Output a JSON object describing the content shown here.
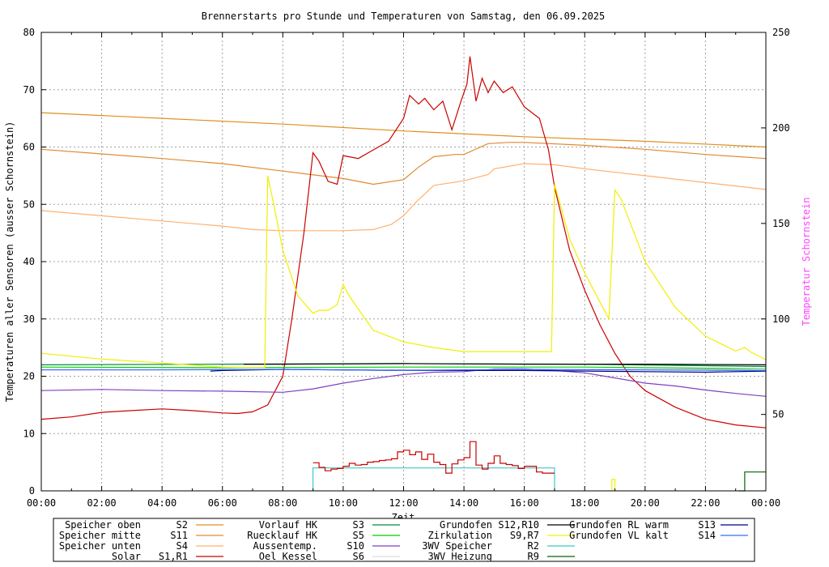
{
  "chart_data": {
    "type": "line",
    "title": "Brennerstarts pro Stunde und Temperaturen von Samstag, den 06.09.2025",
    "xlabel": "Zeit",
    "ylabel": "Temperaturen aller Sensoren (ausser Schornstein)",
    "y2label": "Temperatur Schornstein",
    "xlim": [
      0,
      24
    ],
    "ylim": [
      0,
      80
    ],
    "y2lim": [
      10,
      250
    ],
    "grid": true,
    "x_ticks": [
      "00:00",
      "02:00",
      "04:00",
      "06:00",
      "08:00",
      "10:00",
      "12:00",
      "14:00",
      "16:00",
      "18:00",
      "20:00",
      "22:00",
      "00:00"
    ],
    "y_ticks": [
      "0",
      "10",
      "20",
      "30",
      "40",
      "50",
      "60",
      "70",
      "80"
    ],
    "y2_ticks": [
      "50",
      "100",
      "150",
      "200",
      "250"
    ],
    "y2_tick_values": [
      50,
      100,
      150,
      200,
      250
    ],
    "series": [
      {
        "name": "Speicher oben",
        "sensor": "S2",
        "color": "#e09020",
        "axis": "y",
        "x": [
          0,
          4,
          8,
          12,
          16,
          20,
          24
        ],
        "y": [
          66,
          65,
          64,
          62.8,
          61.8,
          61,
          60
        ]
      },
      {
        "name": "Speicher mitte",
        "sensor": "S11",
        "color": "#e08a30",
        "axis": "y",
        "x": [
          0,
          2,
          4,
          6,
          8,
          10,
          11,
          12,
          12.5,
          13,
          13.7,
          14,
          14.8,
          15.5,
          16,
          18,
          20,
          22,
          24
        ],
        "y": [
          59.6,
          58.8,
          58,
          57.1,
          55.8,
          54.5,
          53.5,
          54.3,
          56.5,
          58.3,
          58.7,
          58.7,
          60.6,
          60.8,
          60.8,
          60.3,
          59.6,
          58.7,
          58
        ]
      },
      {
        "name": "Speicher unten",
        "sensor": "S4",
        "color": "#ffb070",
        "axis": "y",
        "x": [
          0,
          2,
          4,
          6,
          7,
          8,
          10,
          11,
          11.6,
          12,
          12.4,
          13,
          14,
          14.8,
          15,
          16,
          17,
          18,
          20,
          22,
          24
        ],
        "y": [
          48.9,
          48,
          47.1,
          46.2,
          45.6,
          45.4,
          45.4,
          45.6,
          46.5,
          48,
          50.3,
          53.3,
          54.1,
          55.2,
          56.2,
          57.1,
          56.9,
          56.2,
          55,
          53.8,
          52.6
        ]
      },
      {
        "name": "Solar",
        "sensor": "S1,R1",
        "color": "#cc0000",
        "axis": "y",
        "x": [
          0,
          1,
          2,
          3,
          4,
          5,
          6,
          6.5,
          7,
          7.5,
          8,
          8.3,
          8.7,
          9,
          9.2,
          9.5,
          9.8,
          10,
          10.5,
          11,
          11.5,
          12,
          12.2,
          12.5,
          12.7,
          13,
          13.3,
          13.6,
          13.9,
          14.1,
          14.2,
          14.4,
          14.6,
          14.8,
          15,
          15.3,
          15.6,
          16,
          16.5,
          16.8,
          17,
          17.5,
          18,
          18.5,
          19,
          19.5,
          20,
          21,
          22,
          23,
          24
        ],
        "y": [
          12.5,
          12.9,
          13.7,
          14,
          14.3,
          14,
          13.6,
          13.5,
          13.8,
          15,
          20,
          30,
          45,
          59,
          57.5,
          54,
          53.5,
          58.5,
          58,
          59.5,
          61,
          65,
          69,
          67.5,
          68.5,
          66.5,
          68,
          63,
          68,
          71,
          75.8,
          68,
          72,
          69.5,
          71.5,
          69.5,
          70.5,
          67,
          65,
          59.5,
          53,
          42,
          35,
          29,
          24,
          20,
          17.5,
          14.6,
          12.5,
          11.5,
          11
        ]
      },
      {
        "name": "Vorlauf HK",
        "sensor": "S3",
        "color": "#008c40",
        "axis": "y",
        "x": [
          0,
          6,
          12,
          18,
          24
        ],
        "y": [
          22,
          22.1,
          22.2,
          22.1,
          21.7
        ]
      },
      {
        "name": "Ruecklauf HK",
        "sensor": "S5",
        "color": "#00cc00",
        "axis": "y",
        "x": [
          0,
          6,
          12,
          18,
          24
        ],
        "y": [
          21.6,
          21.5,
          21.6,
          21.6,
          21.3
        ]
      },
      {
        "name": "Aussentemp.",
        "sensor": "S10",
        "color": "#8040c0",
        "axis": "y",
        "x": [
          0,
          2,
          4,
          6,
          8,
          9,
          10,
          11,
          12,
          13,
          14,
          15,
          16,
          17,
          18,
          19,
          20,
          21,
          22,
          23,
          24
        ],
        "y": [
          17.5,
          17.7,
          17.5,
          17.4,
          17.2,
          17.8,
          18.8,
          19.6,
          20.3,
          20.7,
          20.8,
          21.3,
          21.3,
          21,
          20.6,
          19.7,
          18.8,
          18.3,
          17.6,
          17,
          16.5
        ]
      },
      {
        "name": "Oel Kessel",
        "sensor": "S6",
        "color": "#dcdcdc",
        "axis": "y",
        "x": [
          0,
          24
        ],
        "y": [
          21.2,
          21.2
        ]
      },
      {
        "name": "Grundofen",
        "sensor": "S12,R10",
        "color": "#000000",
        "axis": "y",
        "x": [
          6.7,
          8,
          12,
          16,
          20,
          24
        ],
        "y": [
          22.1,
          22.1,
          22.2,
          22.1,
          22.1,
          22
        ]
      },
      {
        "name": "Zirkulation",
        "sensor": "S9,R7",
        "color": "#f0f000",
        "axis": "y",
        "x": [
          0,
          2,
          4,
          6,
          7,
          7.4,
          7.5,
          7.7,
          8,
          8.5,
          9,
          9.2,
          9.5,
          9.8,
          10,
          10.2,
          11,
          12,
          13,
          14,
          15,
          16,
          16.9,
          17,
          17.5,
          18,
          18.8,
          19,
          19.2,
          20,
          21,
          22,
          23,
          23.3,
          23.5,
          24
        ],
        "y": [
          24,
          23,
          22.3,
          21.6,
          21.5,
          21.5,
          55,
          50,
          42,
          34,
          31,
          31.5,
          31.5,
          32.5,
          36,
          34,
          28,
          26,
          25,
          24.3,
          24.3,
          24.3,
          24.3,
          53.5,
          44,
          38,
          30,
          52.5,
          51,
          40,
          32,
          27,
          24.4,
          25,
          24.2,
          22.9
        ]
      },
      {
        "name": "3WV Speicher",
        "sensor": "R2",
        "color": "#40c8c8",
        "axis": "y",
        "x": [
          9,
          9,
          17,
          17
        ],
        "y": [
          0,
          4,
          4,
          0
        ]
      },
      {
        "name": "3WV Heizung",
        "sensor": "R9",
        "color": "#006400",
        "axis": "y",
        "x": [
          23.1,
          23.3,
          23.3,
          24
        ],
        "y": [
          0,
          0,
          3.3,
          3.3
        ]
      },
      {
        "name": "Grundofen RL warm",
        "sensor": "S13",
        "color": "#000080",
        "axis": "y",
        "x": [
          5.6,
          6,
          8,
          12,
          16,
          20,
          22,
          24
        ],
        "y": [
          20.9,
          21,
          21.2,
          21,
          21,
          20.8,
          20.7,
          20.9
        ]
      },
      {
        "name": "Grundofen VL kalt",
        "sensor": "S14",
        "color": "#3070ff",
        "axis": "y",
        "x": [
          0,
          4,
          8,
          12,
          16,
          20,
          24
        ],
        "y": [
          21.1,
          21.1,
          21.2,
          21,
          21.2,
          21.1,
          21
        ]
      },
      {
        "name": "Brennerstarts",
        "sensor": "",
        "color": "#cc0000",
        "axis": "y",
        "step": true,
        "x": [
          9,
          9.2,
          9.4,
          9.6,
          9.8,
          10,
          10.2,
          10.4,
          10.6,
          10.8,
          11,
          11.2,
          11.4,
          11.6,
          11.8,
          12,
          12.2,
          12.4,
          12.6,
          12.8,
          13,
          13.2,
          13.4,
          13.6,
          13.8,
          14,
          14.2,
          14.4,
          14.6,
          14.8,
          15,
          15.2,
          15.4,
          15.6,
          15.8,
          16,
          16.2,
          16.4,
          16.6,
          16.8,
          17
        ],
        "y": [
          4.9,
          4.1,
          3.5,
          3.8,
          3.9,
          4.3,
          4.8,
          4.5,
          4.6,
          5,
          5.1,
          5.3,
          5.4,
          5.6,
          6.8,
          7.1,
          6.3,
          6.8,
          5.5,
          6.4,
          5,
          4.6,
          3.1,
          4.7,
          5.4,
          5.8,
          8.6,
          4.5,
          3.8,
          4.8,
          6.1,
          4.8,
          4.6,
          4.4,
          3.9,
          4.3,
          4.3,
          3.3,
          3.1,
          3.1,
          3.1
        ]
      },
      {
        "name": "Zirkulation Puls",
        "sensor": "",
        "color": "#f0f000",
        "axis": "y",
        "x": [
          18.9,
          18.9,
          19,
          19
        ],
        "y": [
          0,
          2,
          2,
          0
        ]
      }
    ]
  },
  "legend": [
    {
      "name": "Speicher oben",
      "sensor": "S2",
      "color": "#e09020"
    },
    {
      "name": "Speicher mitte",
      "sensor": "S11",
      "color": "#e08a30"
    },
    {
      "name": "Speicher unten",
      "sensor": "S4",
      "color": "#ffb070"
    },
    {
      "name": "Solar",
      "sensor": "S1,R1",
      "color": "#cc0000"
    },
    {
      "name": "Vorlauf HK",
      "sensor": "S3",
      "color": "#008c40"
    },
    {
      "name": "Ruecklauf HK",
      "sensor": "S5",
      "color": "#00cc00"
    },
    {
      "name": "Aussentemp.",
      "sensor": "S10",
      "color": "#8040c0"
    },
    {
      "name": "Oel Kessel",
      "sensor": "S6",
      "color": "#dcdcdc"
    },
    {
      "name": "Grundofen",
      "sensor": "S12,R10",
      "color": "#000000"
    },
    {
      "name": "Zirkulation",
      "sensor": "S9,R7",
      "color": "#f0f000"
    },
    {
      "name": "3WV Speicher",
      "sensor": "R2",
      "color": "#40c8c8"
    },
    {
      "name": "3WV Heizung",
      "sensor": "R9",
      "color": "#006400"
    },
    {
      "name": "Grundofen RL warm",
      "sensor": "S13",
      "color": "#000080"
    },
    {
      "name": "Grundofen VL kalt",
      "sensor": "S14",
      "color": "#3070ff"
    }
  ]
}
